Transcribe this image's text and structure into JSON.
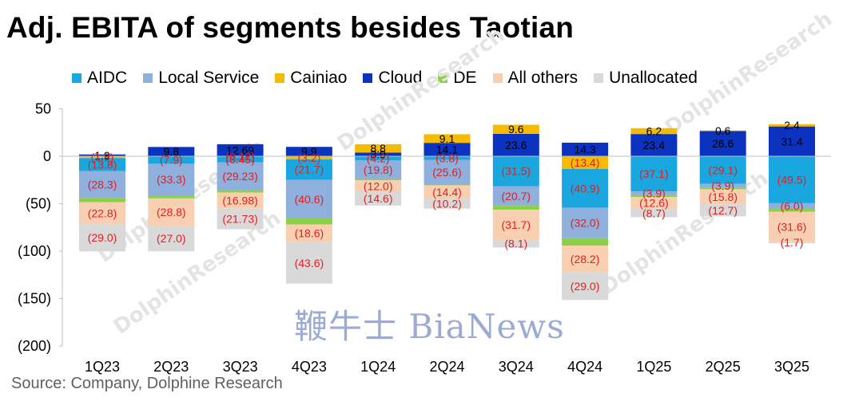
{
  "title": "Adj. EBITA of segments besides Taotian",
  "source": "Source:   Company, Dolphine Research",
  "watermark": "鞭牛士 BiaNews",
  "background_watermark": "DolphinResearch",
  "colors": {
    "AIDC": "#1aa7e0",
    "Local Service": "#8fb0dc",
    "Cainiao": "#f5bb00",
    "Cloud": "#0b33c0",
    "DE": "#8cd04a",
    "All others": "#f8cfb0",
    "Unallocated": "#d9d9d9",
    "negative_label": "#e02020",
    "positive_label": "#000000"
  },
  "chart_data": {
    "type": "bar",
    "stacked": true,
    "title": "Adj. EBITA of segments besides Taotian",
    "categories": [
      "1Q23",
      "2Q23",
      "3Q23",
      "4Q23",
      "1Q24",
      "2Q24",
      "3Q24",
      "4Q24",
      "1Q25",
      "2Q25",
      "3Q25"
    ],
    "ylim": [
      -200,
      50
    ],
    "yticks": [
      50,
      0,
      -50,
      -100,
      -150,
      -200
    ],
    "ytick_labels": [
      "50",
      "0",
      "(50)",
      "(100)",
      "(150)",
      "(200)"
    ],
    "legend": [
      "AIDC",
      "Local Service",
      "Cainiao",
      "Cloud",
      "DE",
      "All others",
      "Unallocated"
    ],
    "legend_position": "top",
    "series": [
      {
        "name": "AIDC",
        "values": [
          -13.8,
          -7.9,
          -6.45,
          -21.7,
          -4.2,
          -3.8,
          -31.5,
          -40.9,
          -37.1,
          -29.1,
          -49.5
        ],
        "labels": [
          "(13.8)",
          "(7.9)",
          "(6.45)",
          "(21.7)",
          "(4.2)",
          "(3.8)",
          "(31.5)",
          "(40.9)",
          "(37.1)",
          "(29.1)",
          "(49.5)"
        ]
      },
      {
        "name": "Local Service",
        "values": [
          -28.3,
          -33.3,
          -29.23,
          -40.6,
          -19.8,
          -25.6,
          -20.7,
          -32.0,
          -3.9,
          -3.9,
          -6.0
        ],
        "labels": [
          "(28.3)",
          "(33.3)",
          "(29.23)",
          "(40.6)",
          "(19.8)",
          "(25.6)",
          "(20.7)",
          "(32.0)",
          "(3.9)",
          "(3.9)",
          "(6.0)"
        ]
      },
      {
        "name": "Cainiao",
        "values": [
          -1.9,
          0,
          -0.12,
          -3.2,
          8.8,
          9.1,
          9.6,
          -13.4,
          6.2,
          0.6,
          2.4
        ],
        "labels": [
          "(1.9)",
          "",
          "(0.12)",
          "(3.2)",
          "8.8",
          "9.1",
          "9.6",
          "(13.4)",
          "6.2",
          "0.6",
          "2.4"
        ]
      },
      {
        "name": "Cloud",
        "values": [
          1.9,
          9.8,
          12.69,
          9.9,
          3.9,
          14.1,
          23.6,
          14.3,
          23.4,
          26.6,
          31.4
        ],
        "labels": [
          "1.9",
          "9.8",
          "12.69",
          "9.9",
          "3.9",
          "14.1",
          "23.6",
          "14.3",
          "23.4",
          "26.6",
          "31.4"
        ]
      },
      {
        "name": "DE",
        "values": [
          -4.5,
          -3.2,
          -2.4,
          -6.5,
          -1.4,
          -1.2,
          -4.2,
          -8.0,
          -2.0,
          -1.8,
          -3.0
        ],
        "labels": [
          "",
          "",
          "",
          "",
          "",
          "",
          "",
          "",
          "",
          "",
          ""
        ]
      },
      {
        "name": "All others",
        "values": [
          -22.8,
          -28.8,
          -16.98,
          -18.6,
          -12.0,
          -14.4,
          -31.7,
          -28.2,
          -12.6,
          -15.8,
          -31.6
        ],
        "labels": [
          "(22.8)",
          "(28.8)",
          "(16.98)",
          "(18.6)",
          "(12.0)",
          "(14.4)",
          "(31.7)",
          "(28.2)",
          "(12.6)",
          "(15.8)",
          "(31.6)"
        ]
      },
      {
        "name": "Unallocated",
        "values": [
          -29.0,
          -27.0,
          -21.73,
          -43.6,
          -14.6,
          -10.2,
          -8.1,
          -29.0,
          -8.7,
          -12.7,
          -1.7
        ],
        "labels": [
          "(29.0)",
          "(27.0)",
          "(21.73)",
          "(43.6)",
          "(14.6)",
          "(10.2)",
          "(8.1)",
          "(29.0)",
          "(8.7)",
          "(12.7)",
          "(1.7)"
        ]
      }
    ]
  }
}
